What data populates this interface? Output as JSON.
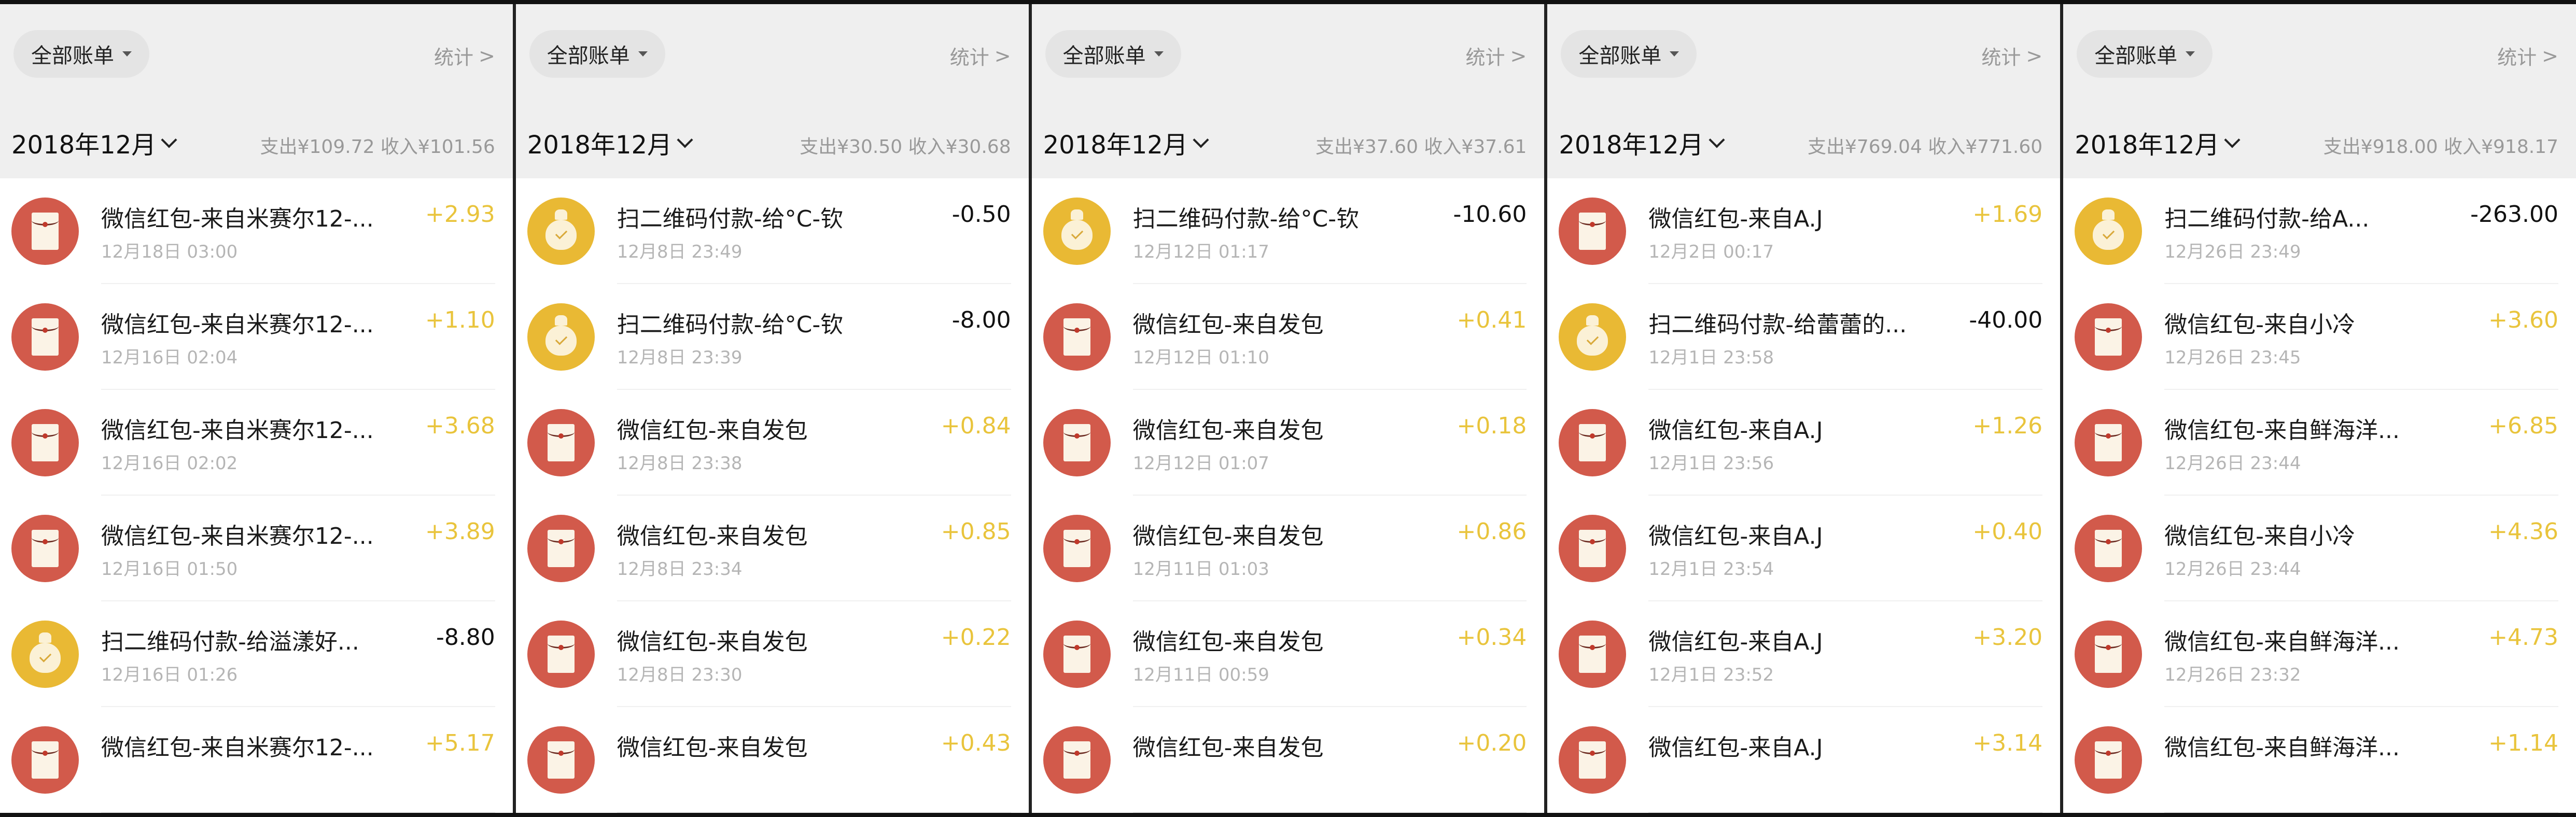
{
  "colors": {
    "income": "#e9c43c",
    "expense": "#111111",
    "red_packet_icon": "#d25a4b",
    "qr_payment_icon": "#e9b934",
    "header_bg": "#efefef"
  },
  "panels": [
    {
      "filter": "全部账单",
      "stats": "统计",
      "month": "2018年12月",
      "summary": "支出¥109.72  收入¥101.56",
      "rows": [
        {
          "icon": "red-packet",
          "title": "微信红包-来自米赛尔12-...",
          "date": "12月18日 03:00",
          "amount": "+2.93",
          "type": "income"
        },
        {
          "icon": "red-packet",
          "title": "微信红包-来自米赛尔12-...",
          "date": "12月16日 02:04",
          "amount": "+1.10",
          "type": "income"
        },
        {
          "icon": "red-packet",
          "title": "微信红包-来自米赛尔12-...",
          "date": "12月16日 02:02",
          "amount": "+3.68",
          "type": "income"
        },
        {
          "icon": "red-packet",
          "title": "微信红包-来自米赛尔12-...",
          "date": "12月16日 01:50",
          "amount": "+3.89",
          "type": "income"
        },
        {
          "icon": "qr-payment",
          "title": "扫二维码付款-给溢漾好...",
          "date": "12月16日 01:26",
          "amount": "-8.80",
          "type": "expense"
        },
        {
          "icon": "red-packet",
          "title": "微信红包-来自米赛尔12-...",
          "date": "",
          "amount": "+5.17",
          "type": "income"
        }
      ]
    },
    {
      "filter": "全部账单",
      "stats": "统计",
      "month": "2018年12月",
      "summary": "支出¥30.50  收入¥30.68",
      "rows": [
        {
          "icon": "qr-payment",
          "title": "扫二维码付款-给°C-钦",
          "date": "12月8日 23:49",
          "amount": "-0.50",
          "type": "expense"
        },
        {
          "icon": "qr-payment",
          "title": "扫二维码付款-给°C-钦",
          "date": "12月8日 23:39",
          "amount": "-8.00",
          "type": "expense"
        },
        {
          "icon": "red-packet",
          "title": "微信红包-来自发包",
          "date": "12月8日 23:38",
          "amount": "+0.84",
          "type": "income"
        },
        {
          "icon": "red-packet",
          "title": "微信红包-来自发包",
          "date": "12月8日 23:34",
          "amount": "+0.85",
          "type": "income"
        },
        {
          "icon": "red-packet",
          "title": "微信红包-来自发包",
          "date": "12月8日 23:30",
          "amount": "+0.22",
          "type": "income"
        },
        {
          "icon": "red-packet",
          "title": "微信红包-来自发包",
          "date": "",
          "amount": "+0.43",
          "type": "income"
        }
      ]
    },
    {
      "filter": "全部账单",
      "stats": "统计",
      "month": "2018年12月",
      "summary": "支出¥37.60  收入¥37.61",
      "rows": [
        {
          "icon": "qr-payment",
          "title": "扫二维码付款-给°C-钦",
          "date": "12月12日 01:17",
          "amount": "-10.60",
          "type": "expense"
        },
        {
          "icon": "red-packet",
          "title": "微信红包-来自发包",
          "date": "12月12日 01:10",
          "amount": "+0.41",
          "type": "income"
        },
        {
          "icon": "red-packet",
          "title": "微信红包-来自发包",
          "date": "12月12日 01:07",
          "amount": "+0.18",
          "type": "income"
        },
        {
          "icon": "red-packet",
          "title": "微信红包-来自发包",
          "date": "12月11日 01:03",
          "amount": "+0.86",
          "type": "income"
        },
        {
          "icon": "red-packet",
          "title": "微信红包-来自发包",
          "date": "12月11日 00:59",
          "amount": "+0.34",
          "type": "income"
        },
        {
          "icon": "red-packet",
          "title": "微信红包-来自发包",
          "date": "",
          "amount": "+0.20",
          "type": "income"
        }
      ]
    },
    {
      "filter": "全部账单",
      "stats": "统计",
      "month": "2018年12月",
      "summary": "支出¥769.04  收入¥771.60",
      "rows": [
        {
          "icon": "red-packet",
          "title": "微信红包-来自A.J",
          "date": "12月2日 00:17",
          "amount": "+1.69",
          "type": "income"
        },
        {
          "icon": "qr-payment",
          "title": "扫二维码付款-给蕾蕾的...",
          "date": "12月1日 23:58",
          "amount": "-40.00",
          "type": "expense"
        },
        {
          "icon": "red-packet",
          "title": "微信红包-来自A.J",
          "date": "12月1日 23:56",
          "amount": "+1.26",
          "type": "income"
        },
        {
          "icon": "red-packet",
          "title": "微信红包-来自A.J",
          "date": "12月1日 23:54",
          "amount": "+0.40",
          "type": "income"
        },
        {
          "icon": "red-packet",
          "title": "微信红包-来自A.J",
          "date": "12月1日 23:52",
          "amount": "+3.20",
          "type": "income"
        },
        {
          "icon": "red-packet",
          "title": "微信红包-来自A.J",
          "date": "",
          "amount": "+3.14",
          "type": "income"
        }
      ]
    },
    {
      "filter": "全部账单",
      "stats": "统计",
      "month": "2018年12月",
      "summary": "支出¥918.00  收入¥918.17",
      "rows": [
        {
          "icon": "qr-payment",
          "title": "扫二维码付款-给A...",
          "date": "12月26日 23:49",
          "amount": "-263.00",
          "type": "expense"
        },
        {
          "icon": "red-packet",
          "title": "微信红包-来自小冷",
          "date": "12月26日 23:45",
          "amount": "+3.60",
          "type": "income"
        },
        {
          "icon": "red-packet",
          "title": "微信红包-来自鲜海洋...",
          "date": "12月26日 23:44",
          "amount": "+6.85",
          "type": "income"
        },
        {
          "icon": "red-packet",
          "title": "微信红包-来自小冷",
          "date": "12月26日 23:44",
          "amount": "+4.36",
          "type": "income"
        },
        {
          "icon": "red-packet",
          "title": "微信红包-来自鲜海洋...",
          "date": "12月26日 23:32",
          "amount": "+4.73",
          "type": "income"
        },
        {
          "icon": "red-packet",
          "title": "微信红包-来自鲜海洋...",
          "date": "",
          "amount": "+1.14",
          "type": "income"
        }
      ]
    }
  ]
}
